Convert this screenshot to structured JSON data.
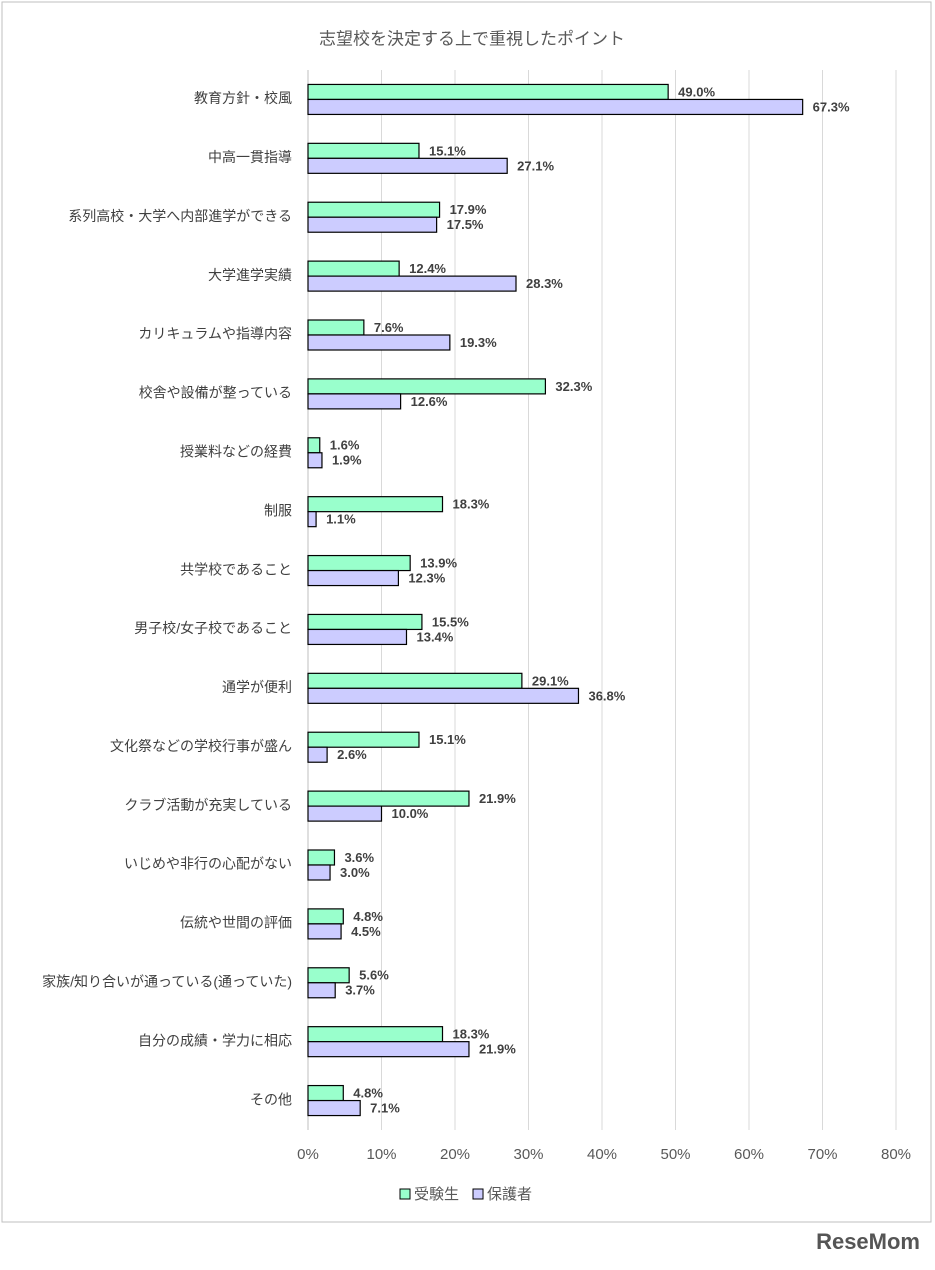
{
  "chart_data": {
    "type": "bar",
    "orientation": "horizontal",
    "title": "志望校を決定する上で重視したポイント",
    "categories": [
      "教育方針・校風",
      "中高一貫指導",
      "系列高校・大学へ内部進学ができる",
      "大学進学実績",
      "カリキュラムや指導内容",
      "校舎や設備が整っている",
      "授業料などの経費",
      "制服",
      "共学校であること",
      "男子校/女子校であること",
      "通学が便利",
      "文化祭などの学校行事が盛ん",
      "クラブ活動が充実している",
      "いじめや非行の心配がない",
      "伝統や世間の評価",
      "家族/知り合いが通っている(通っていた)",
      "自分の成績・学力に相応",
      "その他"
    ],
    "series": [
      {
        "name": "受験生",
        "color": "#99ffcc",
        "values": [
          49.0,
          15.1,
          17.9,
          12.4,
          7.6,
          32.3,
          1.6,
          18.3,
          13.9,
          15.5,
          29.1,
          15.1,
          21.9,
          3.6,
          4.8,
          5.6,
          18.3,
          4.8
        ],
        "value_labels": [
          "49.0%",
          "15.1%",
          "17.9%",
          "12.4%",
          "7.6%",
          "32.3%",
          "1.6%",
          "18.3%",
          "13.9%",
          "15.5%",
          "29.1%",
          "15.1%",
          "21.9%",
          "3.6%",
          "4.8%",
          "5.6%",
          "18.3%",
          "4.8%"
        ]
      },
      {
        "name": "保護者",
        "color": "#ccccff",
        "values": [
          67.3,
          27.1,
          17.5,
          28.3,
          19.3,
          12.6,
          1.9,
          1.1,
          12.3,
          13.4,
          36.8,
          2.6,
          10.0,
          3.0,
          4.5,
          3.7,
          21.9,
          7.1
        ],
        "value_labels": [
          "67.3%",
          "27.1%",
          "17.5%",
          "28.3%",
          "19.3%",
          "12.6%",
          "1.9%",
          "1.1%",
          "12.3%",
          "13.4%",
          "36.8%",
          "2.6%",
          "10.0%",
          "3.0%",
          "4.5%",
          "3.7%",
          "21.9%",
          "7.1%"
        ]
      }
    ],
    "xlim": [
      0,
      80
    ],
    "xticks": [
      {
        "value": 0,
        "label": "0%"
      },
      {
        "value": 10,
        "label": "10%"
      },
      {
        "value": 20,
        "label": "20%"
      },
      {
        "value": 30,
        "label": "30%"
      },
      {
        "value": 40,
        "label": "40%"
      },
      {
        "value": 50,
        "label": "50%"
      },
      {
        "value": 60,
        "label": "60%"
      },
      {
        "value": 70,
        "label": "70%"
      },
      {
        "value": 80,
        "label": "80%"
      }
    ],
    "grid": true,
    "legend": "bottom"
  },
  "watermark": "ReseMom"
}
